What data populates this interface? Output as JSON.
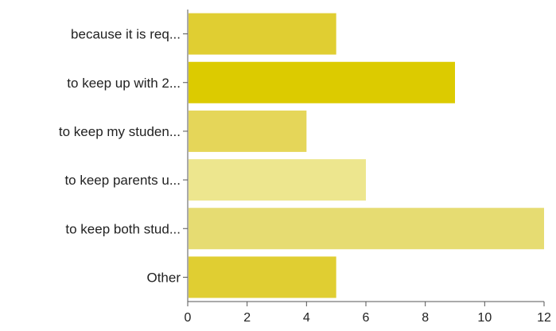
{
  "chart_data": {
    "type": "bar",
    "orientation": "horizontal",
    "categories": [
      "because it is req...",
      "to keep up with 2...",
      "to keep my studen...",
      "to keep parents u...",
      "to keep both stud...",
      "Other"
    ],
    "values": [
      5,
      9,
      4,
      6,
      12,
      5
    ],
    "bar_colors": [
      "#e0ce32",
      "#dccb00",
      "#e5d659",
      "#ede68e",
      "#e6dc72",
      "#e0ce32"
    ],
    "xlim": [
      0,
      12
    ],
    "x_ticks": [
      0,
      2,
      4,
      6,
      8,
      10,
      12
    ],
    "title": "",
    "xlabel": "",
    "ylabel": "",
    "grid": false,
    "axis_color": "#555555"
  }
}
